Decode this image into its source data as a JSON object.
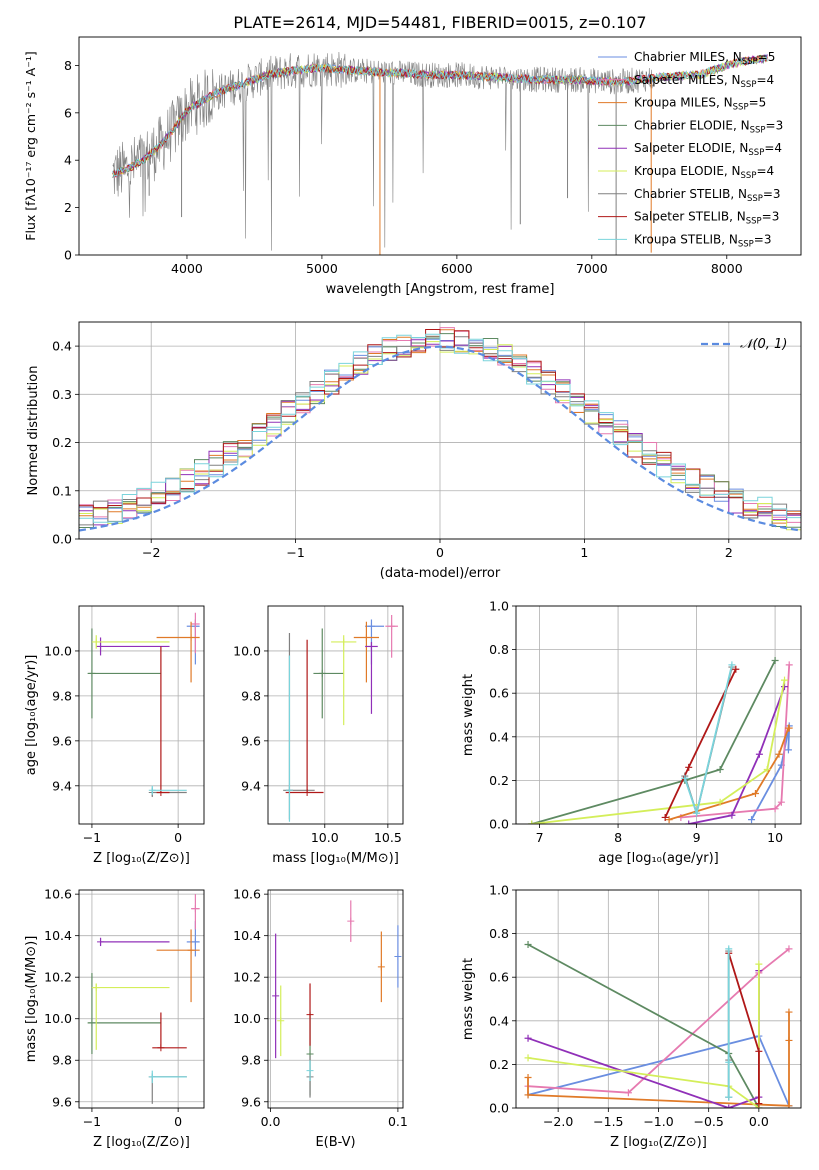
{
  "title": "PLATE=2614, MJD=54481, FIBERID=0015, z=0.107",
  "colors": {
    "chab_miles": "#6a8ee0",
    "salp_miles": "#e67ab0",
    "krou_miles": "#e07a28",
    "chab_elodie": "#5e8a62",
    "salp_elodie": "#9030b8",
    "krou_elodie": "#d4ee5a",
    "chab_stelib": "#808080",
    "salp_stelib": "#b01818",
    "krou_stelib": "#7ad4dc"
  },
  "chart_data": [
    {
      "id": "spectrum",
      "type": "line",
      "xlabel": "wavelength [Angstrom, rest frame]",
      "ylabel": "Flux [fλ10⁻¹⁷ erg cm⁻² s⁻¹ A⁻¹]",
      "xlim": [
        3200,
        8550
      ],
      "ylim": [
        0,
        9.2
      ],
      "xticks": [
        4000,
        5000,
        6000,
        7000,
        8000
      ],
      "yticks": [
        0,
        2,
        4,
        6,
        8
      ],
      "grid": false,
      "legend_position": "upper right",
      "continuum_x": [
        3450,
        3550,
        3700,
        3800,
        3900,
        4000,
        4200,
        4400,
        4600,
        4800,
        5000,
        5200,
        5500,
        5800,
        6000,
        6300,
        6600,
        6900,
        7200,
        7500,
        7800,
        8000,
        8150,
        8300
      ],
      "continuum_y": [
        3.4,
        3.6,
        4.1,
        4.6,
        5.3,
        6.1,
        6.8,
        7.2,
        7.6,
        7.8,
        7.9,
        7.8,
        7.7,
        7.6,
        7.6,
        7.5,
        7.4,
        7.4,
        7.3,
        7.5,
        7.6,
        8.0,
        8.2,
        8.3
      ],
      "series": [
        {
          "name": "Chabrier MILES, N_SSP=5",
          "label_main": "Chabrier MILES, N",
          "label_sub": "SSP",
          "label_tail": "=5"
        },
        {
          "name": "Salpeter MILES, N_SSP=4",
          "label_main": "Salpeter MILES, N",
          "label_sub": "SSP",
          "label_tail": "=4"
        },
        {
          "name": "Kroupa MILES, N_SSP=5",
          "label_main": "Kroupa MILES, N",
          "label_sub": "SSP",
          "label_tail": "=5"
        },
        {
          "name": "Chabrier ELODIE, N_SSP=3",
          "label_main": "Chabrier ELODIE, N",
          "label_sub": "SSP",
          "label_tail": "=3"
        },
        {
          "name": "Salpeter ELODIE, N_SSP=4",
          "label_main": "Salpeter ELODIE, N",
          "label_sub": "SSP",
          "label_tail": "=4"
        },
        {
          "name": "Kroupa ELODIE, N_SSP=4",
          "label_main": "Kroupa ELODIE, N",
          "label_sub": "SSP",
          "label_tail": "=4"
        },
        {
          "name": "Chabrier STELIB, N_SSP=3",
          "label_main": "Chabrier STELIB, N",
          "label_sub": "SSP",
          "label_tail": "=3"
        },
        {
          "name": "Salpeter STELIB, N_SSP=3",
          "label_main": "Salpeter STELIB, N",
          "label_sub": "SSP",
          "label_tail": "=3"
        },
        {
          "name": "Kroupa STELIB, N_SSP=3",
          "label_main": "Kroupa STELIB, N",
          "label_sub": "SSP",
          "label_tail": "=3"
        }
      ]
    },
    {
      "id": "residuals",
      "type": "line",
      "xlabel": "(data-model)/error",
      "ylabel": "Normed distribution",
      "xlim": [
        -2.5,
        2.5
      ],
      "ylim": [
        0,
        0.45
      ],
      "xticks": [
        -2,
        -1,
        0,
        1,
        2
      ],
      "yticks": [
        0.0,
        0.1,
        0.2,
        0.3,
        0.4
      ],
      "grid": true,
      "legend_position": "upper right",
      "gaussian": {
        "name": "N(0,1)",
        "label": "𝒩(0, 1)",
        "mean": 0,
        "sigma": 1
      }
    },
    {
      "id": "age_vs_Z",
      "type": "scatter",
      "xlabel": "Z [log₁₀(Z/Z⊙)]",
      "ylabel": "age  [log₁₀(age/yr)]",
      "xlim": [
        -1.15,
        0.3
      ],
      "ylim": [
        9.23,
        10.2
      ],
      "xticks": [
        -1,
        0
      ],
      "yticks": [
        9.4,
        9.6,
        9.8,
        10.0
      ],
      "grid": true,
      "points": [
        {
          "s": 0,
          "x": 0.2,
          "y": 10.11,
          "xerr": [
            0.1,
            0.05
          ],
          "yerr": [
            0.17,
            0.03
          ]
        },
        {
          "s": 1,
          "x": 0.2,
          "y": 10.12,
          "xerr": [
            0.05,
            0.05
          ],
          "yerr": [
            0.13,
            0.05
          ]
        },
        {
          "s": 2,
          "x": 0.15,
          "y": 10.06,
          "xerr": [
            0.4,
            0.1
          ],
          "yerr": [
            0.2,
            0.07
          ]
        },
        {
          "s": 3,
          "x": -1.0,
          "y": 9.9,
          "xerr": [
            0.05,
            0.8
          ],
          "yerr": [
            0.2,
            0.2
          ]
        },
        {
          "s": 4,
          "x": -0.9,
          "y": 10.02,
          "xerr": [
            0.05,
            0.8
          ],
          "yerr": [
            0.04,
            0.04
          ]
        },
        {
          "s": 5,
          "x": -0.95,
          "y": 10.04,
          "xerr": [
            0.05,
            0.85
          ],
          "yerr": [
            0.03,
            0.03
          ]
        },
        {
          "s": 6,
          "x": -0.3,
          "y": 9.37,
          "xerr": [
            0.0,
            0.4
          ],
          "yerr": [
            0.02,
            0.02
          ]
        },
        {
          "s": 7,
          "x": -0.2,
          "y": 9.37,
          "xerr": [
            0.05,
            0.1
          ],
          "yerr": [
            0.0,
            0.65
          ]
        },
        {
          "s": 8,
          "x": -0.3,
          "y": 9.38,
          "xerr": [
            0.0,
            0.4
          ],
          "yerr": [
            0.02,
            0.02
          ]
        }
      ]
    },
    {
      "id": "age_vs_mass",
      "type": "scatter",
      "xlabel": "mass [log₁₀(M/M⊙)]",
      "ylabel": "",
      "xlim": [
        9.55,
        10.62
      ],
      "ylim": [
        9.23,
        10.2
      ],
      "xticks": [
        10.0,
        10.5
      ],
      "yticks": [
        9.4,
        9.6,
        9.8,
        10.0
      ],
      "grid": true,
      "points": [
        {
          "s": 0,
          "x": 10.37,
          "y": 10.11,
          "xerr": [
            0.05,
            0.1
          ],
          "yerr": [
            0.17,
            0.03
          ]
        },
        {
          "s": 1,
          "x": 10.53,
          "y": 10.11,
          "xerr": [
            0.05,
            0.05
          ],
          "yerr": [
            0.14,
            0.05
          ]
        },
        {
          "s": 2,
          "x": 10.33,
          "y": 10.06,
          "xerr": [
            0.1,
            0.1
          ],
          "yerr": [
            0.2,
            0.07
          ]
        },
        {
          "s": 3,
          "x": 9.98,
          "y": 9.9,
          "xerr": [
            0.07,
            0.17
          ],
          "yerr": [
            0.2,
            0.2
          ]
        },
        {
          "s": 4,
          "x": 10.37,
          "y": 10.02,
          "xerr": [
            0.05,
            0.05
          ],
          "yerr": [
            0.3,
            0.02
          ]
        },
        {
          "s": 5,
          "x": 10.15,
          "y": 10.04,
          "xerr": [
            0.1,
            0.1
          ],
          "yerr": [
            0.37,
            0.03
          ]
        },
        {
          "s": 6,
          "x": 9.72,
          "y": 9.38,
          "xerr": [
            0.05,
            0.2
          ],
          "yerr": [
            0.13,
            0.7
          ]
        },
        {
          "s": 7,
          "x": 9.86,
          "y": 9.37,
          "xerr": [
            0.17,
            0.13
          ],
          "yerr": [
            0.0,
            0.68
          ]
        },
        {
          "s": 8,
          "x": 9.72,
          "y": 9.38,
          "xerr": [
            0.0,
            0.0
          ],
          "yerr": [
            0.14,
            0.6
          ]
        }
      ]
    },
    {
      "id": "weight_vs_age",
      "type": "line",
      "xlabel": "age  [log₁₀(age/yr)]",
      "ylabel": "mass weight",
      "xlim": [
        6.7,
        10.33
      ],
      "ylim": [
        0,
        1.0
      ],
      "xticks": [
        7,
        8,
        9,
        10
      ],
      "yticks": [
        0.0,
        0.2,
        0.4,
        0.6,
        0.8,
        1.0
      ],
      "grid": true,
      "lines": [
        {
          "s": 0,
          "x": [
            9.7,
            10.08,
            10.18,
            10.17
          ],
          "y": [
            0.02,
            0.27,
            0.45,
            0.34
          ]
        },
        {
          "s": 1,
          "x": [
            8.8,
            10.0,
            10.08,
            10.18
          ],
          "y": [
            0.03,
            0.07,
            0.1,
            0.73
          ]
        },
        {
          "s": 2,
          "x": [
            8.65,
            9.75,
            10.05,
            10.17,
            10.18
          ],
          "y": [
            0.02,
            0.14,
            0.32,
            0.44,
            0.44
          ]
        },
        {
          "s": 3,
          "x": [
            6.9,
            8.85,
            9.3,
            10.0
          ],
          "y": [
            0.0,
            0.2,
            0.25,
            0.75
          ]
        },
        {
          "s": 4,
          "x": [
            8.9,
            9.45,
            9.8,
            10.12
          ],
          "y": [
            0.0,
            0.04,
            0.32,
            0.63
          ]
        },
        {
          "s": 5,
          "x": [
            6.9,
            9.3,
            9.9,
            10.12
          ],
          "y": [
            0.0,
            0.1,
            0.25,
            0.66
          ]
        },
        {
          "s": 6,
          "x": [
            8.85,
            9.0,
            9.45
          ],
          "y": [
            0.22,
            0.05,
            0.72
          ]
        },
        {
          "s": 7,
          "x": [
            8.6,
            8.9,
            9.5
          ],
          "y": [
            0.03,
            0.26,
            0.71
          ]
        },
        {
          "s": 8,
          "x": [
            8.85,
            9.0,
            9.45
          ],
          "y": [
            0.21,
            0.05,
            0.73
          ]
        }
      ]
    },
    {
      "id": "mass_vs_Z",
      "type": "scatter",
      "xlabel": "Z [log₁₀(Z/Z⊙)]",
      "ylabel": "mass [log₁₀(M/M⊙)]",
      "xlim": [
        -1.15,
        0.3
      ],
      "ylim": [
        9.57,
        10.62
      ],
      "xticks": [
        -1,
        0
      ],
      "yticks": [
        9.6,
        9.8,
        10.0,
        10.2,
        10.4,
        10.6
      ],
      "grid": true,
      "points": [
        {
          "s": 0,
          "x": 0.2,
          "y": 10.37,
          "xerr": [
            0.1,
            0.05
          ],
          "yerr": [
            0.07,
            0.1
          ]
        },
        {
          "s": 1,
          "x": 0.2,
          "y": 10.53,
          "xerr": [
            0.05,
            0.05
          ],
          "yerr": [
            0.1,
            0.07
          ]
        },
        {
          "s": 2,
          "x": 0.15,
          "y": 10.33,
          "xerr": [
            0.4,
            0.1
          ],
          "yerr": [
            0.25,
            0.1
          ]
        },
        {
          "s": 3,
          "x": -1.0,
          "y": 9.98,
          "xerr": [
            0.05,
            0.8
          ],
          "yerr": [
            0.15,
            0.24
          ]
        },
        {
          "s": 4,
          "x": -0.9,
          "y": 10.37,
          "xerr": [
            0.0,
            0.8
          ],
          "yerr": [
            0.02,
            0.02
          ]
        },
        {
          "s": 5,
          "x": -0.95,
          "y": 10.15,
          "xerr": [
            0.05,
            0.85
          ],
          "yerr": [
            0.3,
            0.02
          ]
        },
        {
          "s": 6,
          "x": -0.3,
          "y": 9.72,
          "xerr": [
            0.0,
            0.4
          ],
          "yerr": [
            0.13,
            0.01
          ]
        },
        {
          "s": 7,
          "x": -0.2,
          "y": 9.86,
          "xerr": [
            0.1,
            0.3
          ],
          "yerr": [
            0.0,
            0.17
          ]
        },
        {
          "s": 8,
          "x": -0.3,
          "y": 9.72,
          "xerr": [
            0.0,
            0.4
          ],
          "yerr": [
            0.03,
            0.03
          ]
        }
      ]
    },
    {
      "id": "mass_vs_ebv",
      "type": "scatter",
      "xlabel": "E(B-V)",
      "ylabel": "",
      "xlim": [
        -0.002,
        0.104
      ],
      "ylim": [
        9.57,
        10.62
      ],
      "xticks": [
        0.0,
        0.1
      ],
      "yticks": [
        9.6,
        9.8,
        10.0,
        10.2,
        10.4,
        10.6
      ],
      "grid": true,
      "points": [
        {
          "s": 0,
          "x": 0.1,
          "y": 10.3,
          "xerr": [
            0,
            0
          ],
          "yerr": [
            0.15,
            0.15
          ]
        },
        {
          "s": 1,
          "x": 0.063,
          "y": 10.47,
          "xerr": [
            0,
            0
          ],
          "yerr": [
            0.1,
            0.1
          ]
        },
        {
          "s": 2,
          "x": 0.087,
          "y": 10.25,
          "xerr": [
            0,
            0
          ],
          "yerr": [
            0.17,
            0.17
          ]
        },
        {
          "s": 3,
          "x": 0.031,
          "y": 9.83,
          "xerr": [
            0,
            0
          ],
          "yerr": [
            0.2,
            0.2
          ]
        },
        {
          "s": 4,
          "x": 0.004,
          "y": 10.11,
          "xerr": [
            0,
            0
          ],
          "yerr": [
            0.3,
            0.3
          ]
        },
        {
          "s": 5,
          "x": 0.008,
          "y": 9.99,
          "xerr": [
            0,
            0
          ],
          "yerr": [
            0.17,
            0.17
          ]
        },
        {
          "s": 6,
          "x": 0.031,
          "y": 9.72,
          "xerr": [
            0,
            0
          ],
          "yerr": [
            0.1,
            0.1
          ]
        },
        {
          "s": 7,
          "x": 0.031,
          "y": 10.02,
          "xerr": [
            0,
            0
          ],
          "yerr": [
            0.15,
            0.15
          ]
        },
        {
          "s": 8,
          "x": 0.031,
          "y": 9.75,
          "xerr": [
            0,
            0
          ],
          "yerr": [
            0.05,
            0.05
          ]
        }
      ]
    },
    {
      "id": "weight_vs_Z",
      "type": "line",
      "xlabel": "Z [log₁₀(Z/Z⊙)]",
      "ylabel": "mass weight",
      "xlim": [
        -2.42,
        0.42
      ],
      "ylim": [
        0,
        1.0
      ],
      "xticks": [
        -2.0,
        -1.5,
        -1.0,
        -0.5,
        0.0
      ],
      "yticks": [
        0.0,
        0.2,
        0.4,
        0.6,
        0.8,
        1.0
      ],
      "grid": true,
      "lines": [
        {
          "s": 0,
          "x": [
            -2.3,
            0.0,
            0.3
          ],
          "y": [
            0.06,
            0.33,
            0.01
          ]
        },
        {
          "s": 1,
          "x": [
            -2.3,
            -1.3,
            0.0,
            0.3
          ],
          "y": [
            0.1,
            0.07,
            0.62,
            0.73
          ]
        },
        {
          "s": 2,
          "x": [
            -2.3,
            -2.3,
            0.3,
            0.3,
            0.3
          ],
          "y": [
            0.14,
            0.06,
            0.01,
            0.44,
            0.31
          ]
        },
        {
          "s": 3,
          "x": [
            -2.3,
            -0.3,
            0.0
          ],
          "y": [
            0.75,
            0.25,
            0.0
          ]
        },
        {
          "s": 4,
          "x": [
            -2.3,
            -0.3,
            0.0,
            0.0
          ],
          "y": [
            0.32,
            0.0,
            0.05,
            0.63
          ]
        },
        {
          "s": 5,
          "x": [
            -2.3,
            -0.3,
            0.0,
            0.0
          ],
          "y": [
            0.23,
            0.1,
            0.0,
            0.66
          ]
        },
        {
          "s": 6,
          "x": [
            -0.3,
            -0.3,
            -0.3
          ],
          "y": [
            0.72,
            0.05,
            0.22
          ]
        },
        {
          "s": 7,
          "x": [
            -0.3,
            0.0,
            0.0
          ],
          "y": [
            0.71,
            0.26,
            0.02
          ]
        },
        {
          "s": 8,
          "x": [
            -0.3,
            -0.3,
            -0.3
          ],
          "y": [
            0.73,
            0.05,
            0.21
          ]
        }
      ]
    }
  ]
}
